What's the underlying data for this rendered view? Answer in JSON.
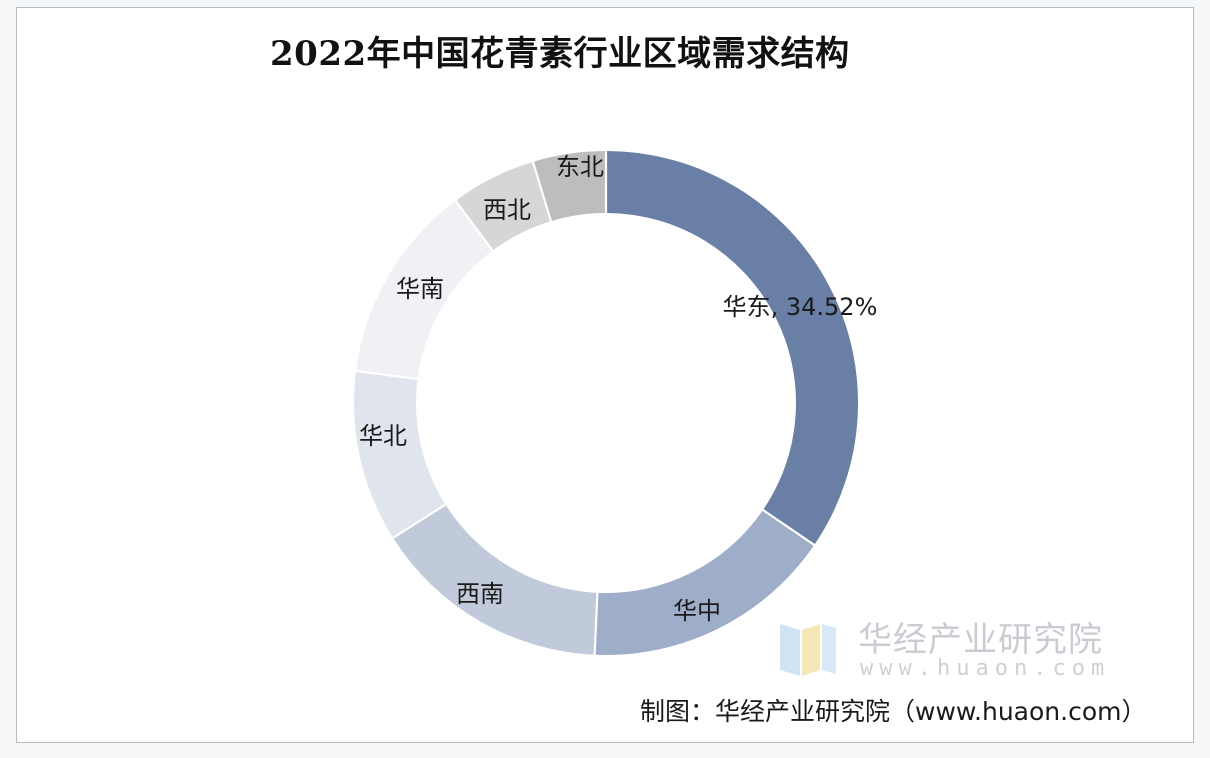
{
  "chart_data": {
    "type": "pie",
    "title": "2022年中国花青素行业区域需求结构",
    "donut": true,
    "slices": [
      {
        "name": "华东",
        "value": 34.52,
        "label": "华东, 34.52%",
        "color": "#6a7fa6"
      },
      {
        "name": "华中",
        "value": 16.2,
        "label": "华中",
        "color": "#9eadc8"
      },
      {
        "name": "西南",
        "value": 15.3,
        "label": "西南",
        "color": "#c1cadb"
      },
      {
        "name": "华北",
        "value": 11.0,
        "label": "华北",
        "color": "#dfe4ed"
      },
      {
        "name": "华南",
        "value": 12.8,
        "label": "华南",
        "color": "#eff1f4"
      },
      {
        "name": "西北",
        "value": 5.5,
        "label": "西北",
        "color": "#d6d6d6"
      },
      {
        "name": "东北",
        "value": 4.68,
        "label": "东北",
        "color": "#bdbdbd"
      }
    ]
  },
  "watermark": {
    "name": "华经产业研究院",
    "url": "www.huaon.com"
  },
  "source": "制图：华经产业研究院（www.huaon.com）"
}
